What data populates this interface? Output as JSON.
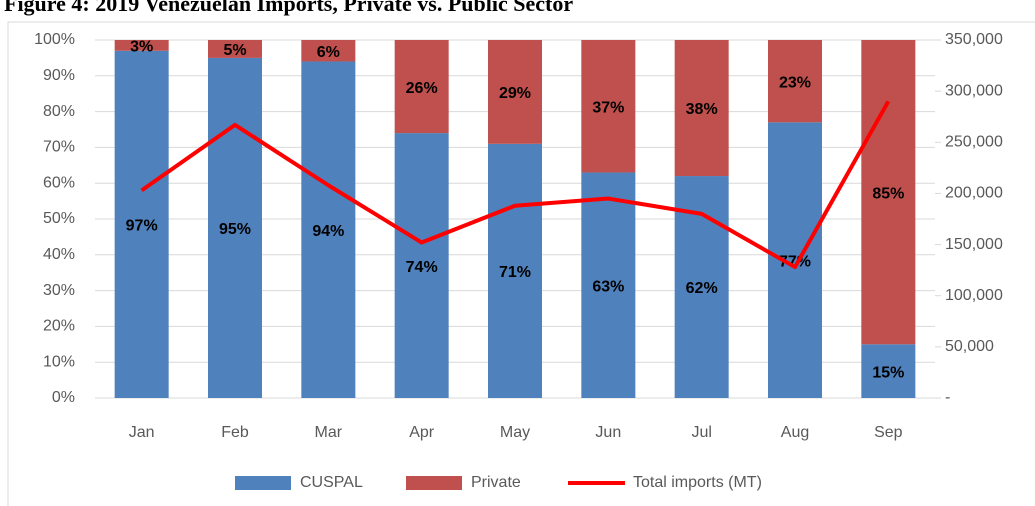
{
  "chart_data": {
    "type": "bar",
    "stacked": true,
    "title": "Figure 4: 2019 Venezuelan Imports, Private vs. Public Sector",
    "categories": [
      "Jan",
      "Feb",
      "Mar",
      "Apr",
      "May",
      "Jun",
      "Jul",
      "Aug",
      "Sep"
    ],
    "series": [
      {
        "name": "CUSPAL",
        "color": "#4f81bd",
        "values": [
          97,
          95,
          94,
          74,
          71,
          63,
          62,
          77,
          15
        ],
        "value_labels": [
          "97%",
          "95%",
          "94%",
          "74%",
          "71%",
          "63%",
          "62%",
          "77%",
          "15%"
        ]
      },
      {
        "name": "Private",
        "color": "#c0504d",
        "values": [
          3,
          5,
          6,
          26,
          29,
          37,
          38,
          23,
          85
        ],
        "value_labels": [
          "3%",
          "5%",
          "6%",
          "26%",
          "29%",
          "37%",
          "38%",
          "23%",
          "85%"
        ]
      },
      {
        "name": "Total imports (MT)",
        "type": "line",
        "axis": "y2",
        "color": "#ff0000",
        "values": [
          203000,
          267000,
          208000,
          152000,
          188000,
          195000,
          180000,
          128000,
          290000
        ]
      }
    ],
    "ylim": [
      0,
      100
    ],
    "yticks": [
      {
        "value": 0,
        "label": "0%"
      },
      {
        "value": 10,
        "label": "10%"
      },
      {
        "value": 20,
        "label": "20%"
      },
      {
        "value": 30,
        "label": "30%"
      },
      {
        "value": 40,
        "label": "40%"
      },
      {
        "value": 50,
        "label": "50%"
      },
      {
        "value": 60,
        "label": "60%"
      },
      {
        "value": 70,
        "label": "70%"
      },
      {
        "value": 80,
        "label": "80%"
      },
      {
        "value": 90,
        "label": "90%"
      },
      {
        "value": 100,
        "label": "100%"
      }
    ],
    "y2lim": [
      0,
      350000
    ],
    "y2ticks": [
      {
        "value": 0,
        "label": "-"
      },
      {
        "value": 50000,
        "label": "50,000"
      },
      {
        "value": 100000,
        "label": "100,000"
      },
      {
        "value": 150000,
        "label": "150,000"
      },
      {
        "value": 200000,
        "label": "200,000"
      },
      {
        "value": 250000,
        "label": "250,000"
      },
      {
        "value": 300000,
        "label": "300,000"
      },
      {
        "value": 350000,
        "label": "350,000"
      }
    ],
    "grid": true,
    "legend": "bottom"
  }
}
